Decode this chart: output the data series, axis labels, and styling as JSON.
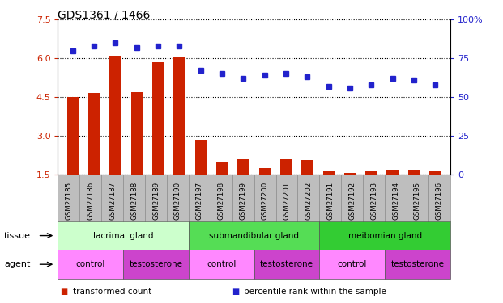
{
  "title": "GDS1361 / 1466",
  "samples": [
    "GSM27185",
    "GSM27186",
    "GSM27187",
    "GSM27188",
    "GSM27189",
    "GSM27190",
    "GSM27197",
    "GSM27198",
    "GSM27199",
    "GSM27200",
    "GSM27201",
    "GSM27202",
    "GSM27191",
    "GSM27192",
    "GSM27193",
    "GSM27194",
    "GSM27195",
    "GSM27196"
  ],
  "red_values": [
    4.5,
    4.65,
    6.1,
    4.7,
    5.85,
    6.05,
    2.85,
    2.0,
    2.1,
    1.75,
    2.1,
    2.05,
    1.6,
    1.55,
    1.6,
    1.65,
    1.65,
    1.6
  ],
  "blue_values": [
    80,
    83,
    85,
    82,
    83,
    83,
    67,
    65,
    62,
    64,
    65,
    63,
    57,
    56,
    58,
    62,
    61,
    58
  ],
  "ylim_left": [
    1.5,
    7.5
  ],
  "ylim_right": [
    0,
    100
  ],
  "yticks_left": [
    1.5,
    3.0,
    4.5,
    6.0,
    7.5
  ],
  "yticks_right": [
    0,
    25,
    50,
    75,
    100
  ],
  "tissue_groups": [
    {
      "label": "lacrimal gland",
      "start": 0,
      "end": 6,
      "color": "#CCFFCC"
    },
    {
      "label": "submandibular gland",
      "start": 6,
      "end": 12,
      "color": "#55DD55"
    },
    {
      "label": "meibomian gland",
      "start": 12,
      "end": 18,
      "color": "#33CC33"
    }
  ],
  "agent_groups": [
    {
      "label": "control",
      "start": 0,
      "end": 3,
      "color": "#FF88FF"
    },
    {
      "label": "testosterone",
      "start": 3,
      "end": 6,
      "color": "#CC44CC"
    },
    {
      "label": "control",
      "start": 6,
      "end": 9,
      "color": "#FF88FF"
    },
    {
      "label": "testosterone",
      "start": 9,
      "end": 12,
      "color": "#CC44CC"
    },
    {
      "label": "control",
      "start": 12,
      "end": 15,
      "color": "#FF88FF"
    },
    {
      "label": "testosterone",
      "start": 15,
      "end": 18,
      "color": "#CC44CC"
    }
  ],
  "bar_color": "#CC2200",
  "dot_color": "#2222CC",
  "grid_color": "#000000",
  "bg_color": "#FFFFFF",
  "left_axis_color": "#CC2200",
  "right_axis_color": "#2222CC",
  "tick_bg_color": "#BEBEBE",
  "legend_items": [
    {
      "label": "transformed count",
      "color": "#CC2200"
    },
    {
      "label": "percentile rank within the sample",
      "color": "#2222CC"
    }
  ]
}
